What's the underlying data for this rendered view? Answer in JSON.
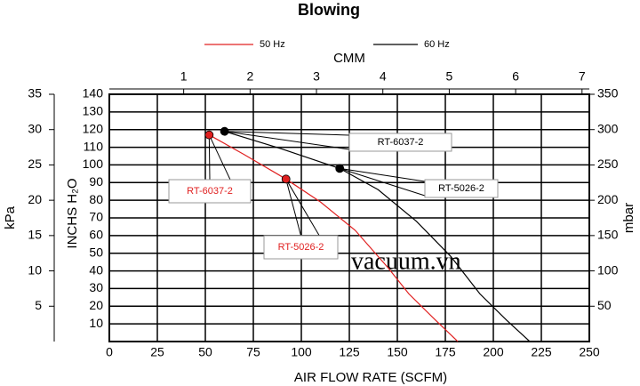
{
  "chart_data": {
    "type": "line",
    "title": "Blowing",
    "xlabel": "AIR FLOW RATE (SCFM)",
    "ylabel": "INCHS H₂O",
    "xlim": [
      0,
      250
    ],
    "xticks": [
      0,
      25,
      50,
      75,
      100,
      125,
      150,
      175,
      200,
      225,
      250
    ],
    "ylim": [
      0,
      140
    ],
    "yticks": [
      10,
      20,
      30,
      40,
      50,
      60,
      70,
      80,
      90,
      100,
      110,
      120,
      130,
      140
    ],
    "grid": true,
    "cmm_axis": {
      "label": "CMM",
      "lim": [
        -0.12,
        7.11
      ],
      "ticks": [
        1,
        2,
        3,
        4,
        5,
        6,
        7
      ]
    },
    "kpa_axis": {
      "label": "kPa",
      "lim": [
        0,
        35
      ],
      "ticks": [
        5,
        10,
        15,
        20,
        25,
        30,
        35
      ]
    },
    "mbar_axis": {
      "label": "mbar",
      "lim": [
        0,
        350
      ],
      "ticks": [
        50,
        100,
        150,
        200,
        250,
        300,
        350
      ]
    },
    "series": [
      {
        "name": "50 Hz",
        "color": "#e02020",
        "x": [
          52,
          70,
          92,
          110,
          128,
          145,
          156,
          170,
          181.5
        ],
        "values": [
          117,
          106,
          92,
          79,
          63,
          42,
          27,
          12,
          0
        ]
      },
      {
        "name": "60 Hz",
        "color": "#000000",
        "x": [
          60,
          90,
          120,
          140,
          160,
          178,
          193,
          207,
          219
        ],
        "values": [
          119,
          109,
          98,
          86,
          68,
          48,
          27,
          12,
          0
        ]
      }
    ],
    "annotations": [
      {
        "text": "RT-6037-2",
        "x": 52,
        "y": 117,
        "color": "#e02020"
      },
      {
        "text": "RT-5026-2",
        "x": 92,
        "y": 92,
        "color": "#e02020"
      },
      {
        "text": "RT-6037-2",
        "x": 60,
        "y": 119,
        "color": "#000000"
      },
      {
        "text": "RT-5026-2",
        "x": 120,
        "y": 98,
        "color": "#000000"
      }
    ],
    "watermark": "vacuum.vn"
  }
}
